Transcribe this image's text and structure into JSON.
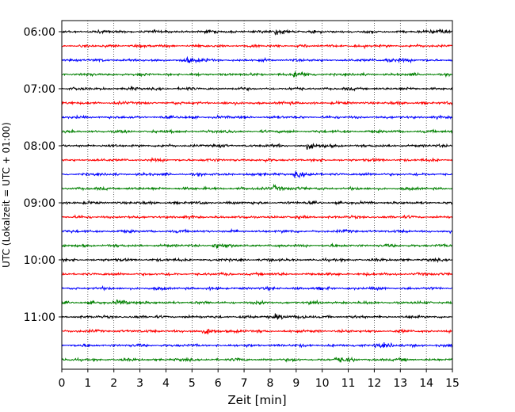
{
  "chart_data": {
    "type": "line",
    "title": "",
    "xlabel": "Zeit  [min]",
    "ylabel": "UTC (Lokalzeit = UTC + 01:00)",
    "xlim": [
      0,
      15
    ],
    "x_ticks": [
      0,
      1,
      2,
      3,
      4,
      5,
      6,
      7,
      8,
      9,
      10,
      11,
      12,
      13,
      14,
      15
    ],
    "y_tick_labels": [
      "06:00",
      "07:00",
      "08:00",
      "09:00",
      "10:00",
      "11:00"
    ],
    "row_interval_min": 15,
    "rows": [
      "06:00",
      "06:15",
      "06:30",
      "06:45",
      "07:00",
      "07:15",
      "07:30",
      "07:45",
      "08:00",
      "08:15",
      "08:30",
      "08:45",
      "09:00",
      "09:15",
      "09:30",
      "09:45",
      "10:00",
      "10:15",
      "10:30",
      "10:45",
      "11:00",
      "11:15",
      "11:30",
      "11:45"
    ],
    "trace_colors": [
      "#000000",
      "#ff0000",
      "#0000ff",
      "#008000"
    ],
    "vertical_grid": "dotted",
    "events": [
      {
        "row": 0,
        "x": 8.3
      },
      {
        "row": 0,
        "x": 14.5
      },
      {
        "row": 2,
        "x": 4.8
      },
      {
        "row": 2,
        "x": 12.5
      },
      {
        "row": 3,
        "x": 9.0
      },
      {
        "row": 8,
        "x": 9.5
      },
      {
        "row": 10,
        "x": 9.0
      },
      {
        "row": 11,
        "x": 8.2
      },
      {
        "row": 15,
        "x": 5.9
      },
      {
        "row": 19,
        "x": 2.2
      },
      {
        "row": 20,
        "x": 8.3
      },
      {
        "row": 21,
        "x": 5.6
      },
      {
        "row": 22,
        "x": 12.1
      },
      {
        "row": 23,
        "x": 10.6
      }
    ]
  }
}
